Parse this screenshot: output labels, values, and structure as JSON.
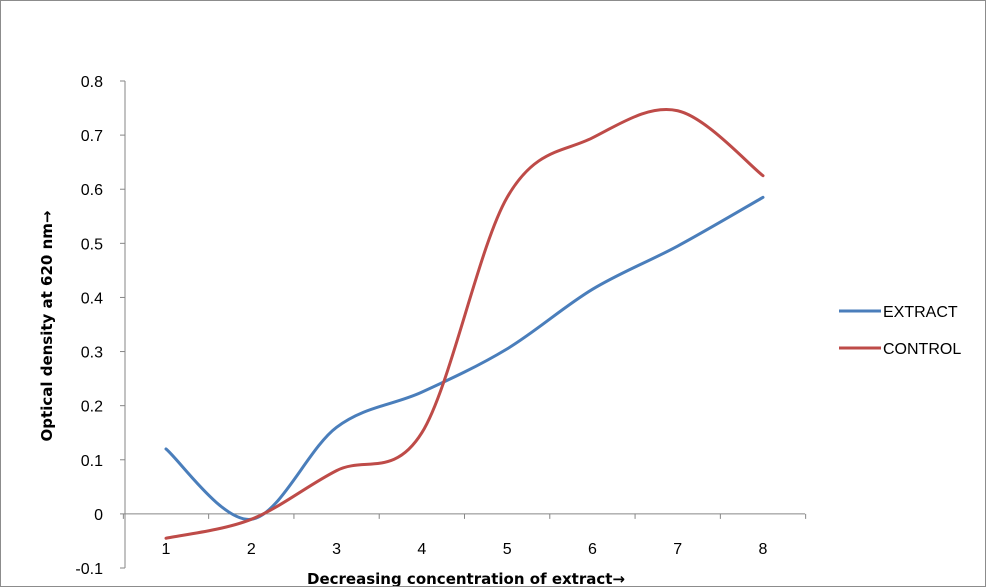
{
  "chart_data": {
    "type": "line",
    "x": [
      1,
      2,
      3,
      4,
      5,
      6,
      7,
      8
    ],
    "series": [
      {
        "name": "EXTRACT",
        "color": "#4a7ebb",
        "values": [
          0.12,
          -0.01,
          0.16,
          0.225,
          0.305,
          0.415,
          0.495,
          0.585
        ]
      },
      {
        "name": "CONTROL",
        "color": "#be4b48",
        "values": [
          -0.045,
          -0.01,
          0.08,
          0.15,
          0.585,
          0.695,
          0.745,
          0.625
        ]
      }
    ],
    "xlabel": "Decreasing concentration  of extract→",
    "ylabel": "Optical density at 620 nm→",
    "ylim": [
      -0.1,
      0.8
    ],
    "yticks": [
      "-0.1",
      "0",
      "0.1",
      "0.2",
      "0.3",
      "0.4",
      "0.5",
      "0.6",
      "0.7",
      "0.8"
    ],
    "xticks": [
      "1",
      "2",
      "3",
      "4",
      "5",
      "6",
      "7",
      "8"
    ],
    "grid": false,
    "legend": "right"
  }
}
